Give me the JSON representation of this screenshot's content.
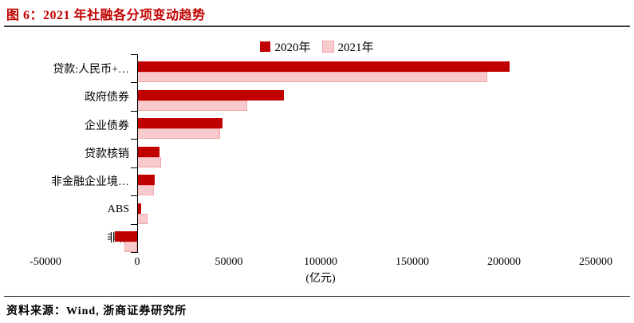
{
  "header": {
    "title": "图 6：2021 年社融各分项变动趋势"
  },
  "chart_data": {
    "type": "bar",
    "orientation": "horizontal",
    "title": "2021 年社融各分项变动趋势",
    "categories": [
      "贷款:人民币+…",
      "政府债券",
      "企业债券",
      "贷款核销",
      "非金融企业境…",
      "ABS",
      "非标"
    ],
    "series": [
      {
        "name": "2020年",
        "color": "#c00000",
        "values": [
          203000,
          80000,
          46500,
          12000,
          9500,
          2000,
          -12000
        ]
      },
      {
        "name": "2021年",
        "color": "#f9cacb",
        "values": [
          191000,
          60000,
          45000,
          13000,
          9000,
          5500,
          -7000
        ]
      }
    ],
    "xlabel": "(亿元)",
    "xlim": [
      -50000,
      250000
    ],
    "xticks": [
      -50000,
      0,
      50000,
      100000,
      150000,
      200000,
      250000
    ],
    "xtick_labels": [
      "-50000",
      "0",
      "50000",
      "100000",
      "150000",
      "200000",
      "250000"
    ],
    "xlabel_anchor_value": 100000,
    "legend_position": "top-center",
    "grid": false
  },
  "footer": {
    "source": "资料来源：Wind, 浙商证券研究所"
  }
}
